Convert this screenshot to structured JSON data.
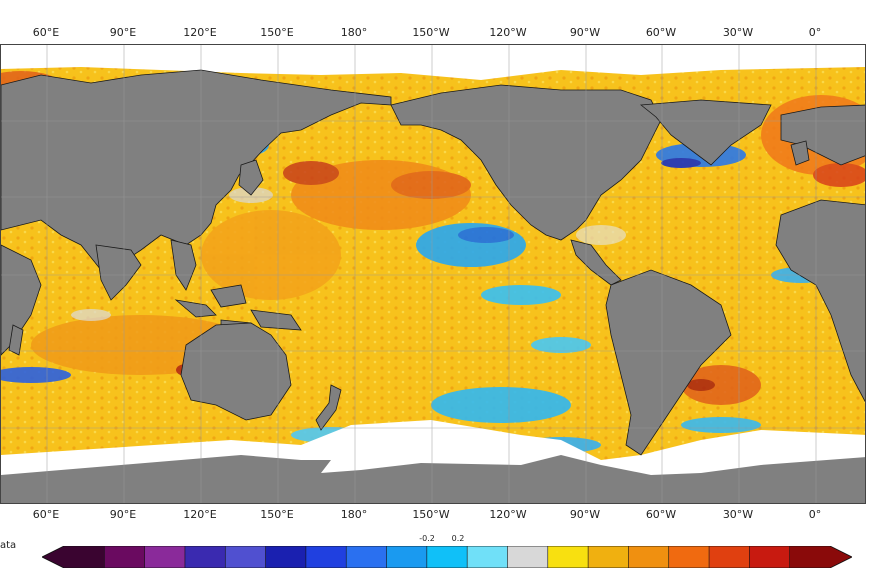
{
  "map": {
    "top_lon_labels": [
      "60°E",
      "90°E",
      "120°E",
      "150°E",
      "180°",
      "150°W",
      "120°W",
      "90°W",
      "60°W",
      "30°W",
      "0°"
    ],
    "bottom_lon_labels": [
      "60°E",
      "90°E",
      "120°E",
      "150°E",
      "180°",
      "150°W",
      "120°W",
      "90°W",
      "60°W",
      "30°W",
      "0°"
    ],
    "land_color": "#808080",
    "ice_color": "#ffffff",
    "ocean_base_color": "#f7c21c"
  },
  "colorbar": {
    "nodata_label": "ata",
    "tick_neg": "-0.2",
    "tick_pos": "0.2",
    "colors": [
      "#3a0430",
      "#6a0a60",
      "#8a2a9a",
      "#3a2ab0",
      "#5050d0",
      "#1a20b0",
      "#2040e0",
      "#2a70f0",
      "#1a9af0",
      "#10c0f8",
      "#70e0f8",
      "#d8d8d8",
      "#f8e010",
      "#f0b010",
      "#f09010",
      "#f06a10",
      "#e04010",
      "#c81a10",
      "#8a0a0a"
    ]
  }
}
